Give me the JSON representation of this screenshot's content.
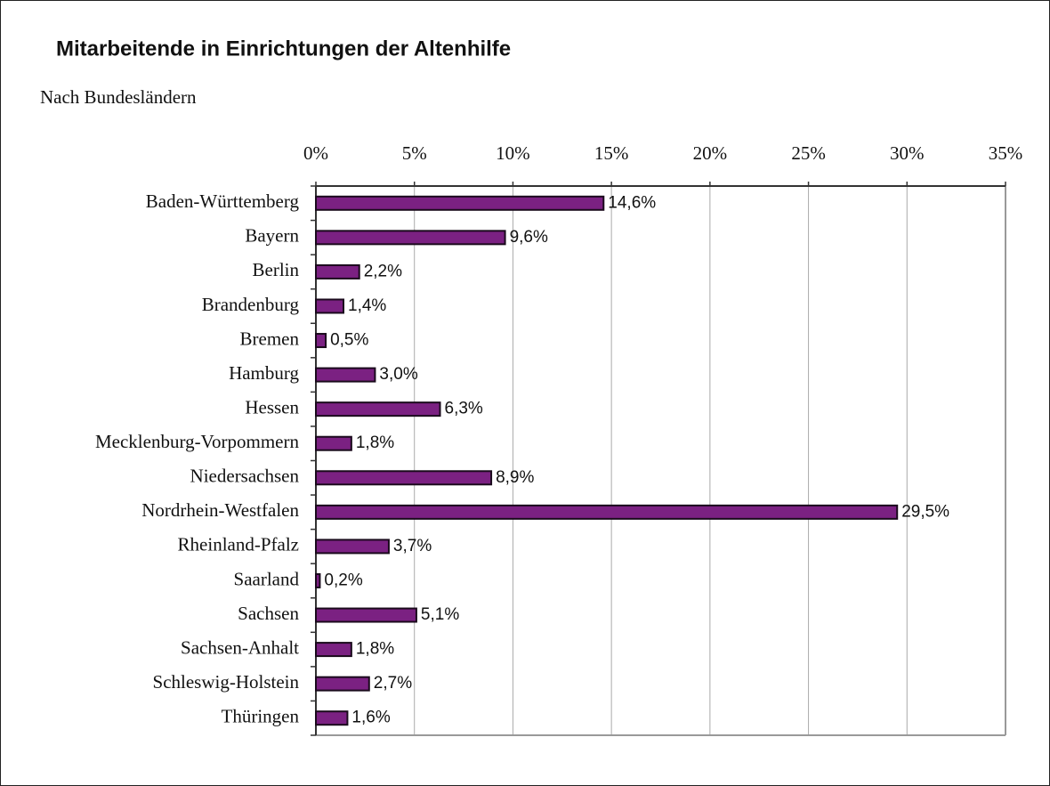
{
  "chart_data": {
    "type": "bar",
    "orientation": "horizontal",
    "title": "Mitarbeitende in Einrichtungen der Altenhilfe",
    "subtitle": "Nach Bundesländern",
    "categories": [
      "Baden-Württemberg",
      "Bayern",
      "Berlin",
      "Brandenburg",
      "Bremen",
      "Hamburg",
      "Hessen",
      "Mecklenburg-Vorpommern",
      "Niedersachsen",
      "Nordrhein-Westfalen",
      "Rheinland-Pfalz",
      "Saarland",
      "Sachsen",
      "Sachsen-Anhalt",
      "Schleswig-Holstein",
      "Thüringen"
    ],
    "values": [
      14.6,
      9.6,
      2.2,
      1.4,
      0.5,
      3.0,
      6.3,
      1.8,
      8.9,
      29.5,
      3.7,
      0.2,
      5.1,
      1.8,
      2.7,
      1.6
    ],
    "value_labels": [
      "14,6%",
      "9,6%",
      "2,2%",
      "1,4%",
      "0,5%",
      "3,0%",
      "6,3%",
      "1,8%",
      "8,9%",
      "29,5%",
      "3,7%",
      "0,2%",
      "5,1%",
      "1,8%",
      "2,7%",
      "1,6%"
    ],
    "color": "#7b2182",
    "xlim": [
      0,
      35
    ],
    "xticks": [
      {
        "value": 0,
        "label": "0%"
      },
      {
        "value": 5,
        "label": "5%"
      },
      {
        "value": 10,
        "label": "10%"
      },
      {
        "value": 15,
        "label": "15%"
      },
      {
        "value": 20,
        "label": "20%"
      },
      {
        "value": 25,
        "label": "25%"
      },
      {
        "value": 30,
        "label": "30%"
      },
      {
        "value": 35,
        "label": "35%"
      }
    ],
    "grid": true
  }
}
